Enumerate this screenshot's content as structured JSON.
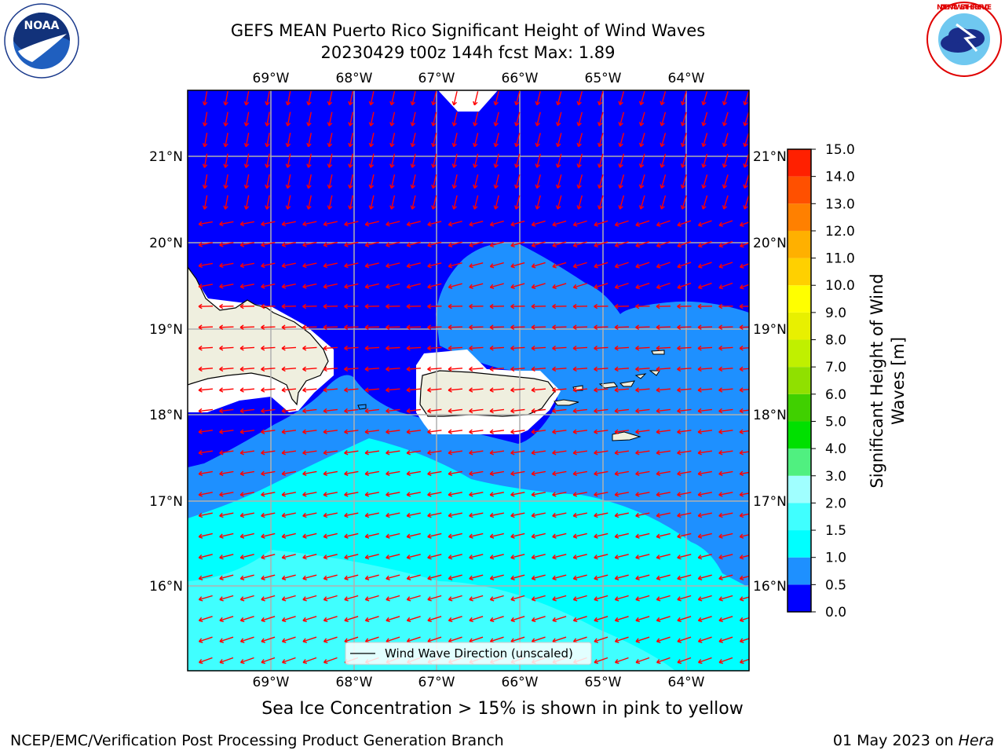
{
  "header": {
    "title_line1": "GEFS MEAN Puerto Rico Significant Height of Wind Waves",
    "title_line2": "20230429 t00z 144h fcst   Max: 1.89"
  },
  "logos": {
    "left": "NOAA",
    "left_ring_text": "NATIONAL OCEANIC AND ATMOSPHERIC ADMINISTRATION · U.S. DEPARTMENT OF COMMERCE",
    "right_ring_text": "NATIONAL WEATHER SERVICE"
  },
  "map": {
    "lon_labels": [
      "69°W",
      "68°W",
      "67°W",
      "66°W",
      "65°W",
      "64°W"
    ],
    "lat_labels": [
      "21°N",
      "20°N",
      "19°N",
      "18°N",
      "17°N",
      "16°N"
    ],
    "legend_label": "Wind Wave Direction (unscaled)",
    "arrow_color": "#ff0000",
    "land_color": "#efefdf"
  },
  "colorbar": {
    "label_line1": "Significant Height of Wind",
    "label_line2": "Waves [m]",
    "ticks": [
      "0.0",
      "0.5",
      "1.0",
      "1.5",
      "2.0",
      "3.0",
      "4.0",
      "5.0",
      "6.0",
      "7.0",
      "8.0",
      "9.0",
      "10.0",
      "11.0",
      "12.0",
      "13.0",
      "14.0",
      "15.0"
    ],
    "colors": [
      "#0000ff",
      "#1e90ff",
      "#00ffff",
      "#40ffff",
      "#a0ffff",
      "#50f080",
      "#00e000",
      "#40d000",
      "#90e000",
      "#c0f000",
      "#e8f000",
      "#ffff00",
      "#ffd000",
      "#ffb000",
      "#ff8000",
      "#ff5000",
      "#ff2000"
    ]
  },
  "notes": {
    "ice": "Sea Ice Concentration > 15% is shown in pink to yellow"
  },
  "footer": {
    "left": "NCEP/EMC/Verification Post Processing Product Generation Branch",
    "date": "01 May 2023 on ",
    "machine": "Hera"
  }
}
